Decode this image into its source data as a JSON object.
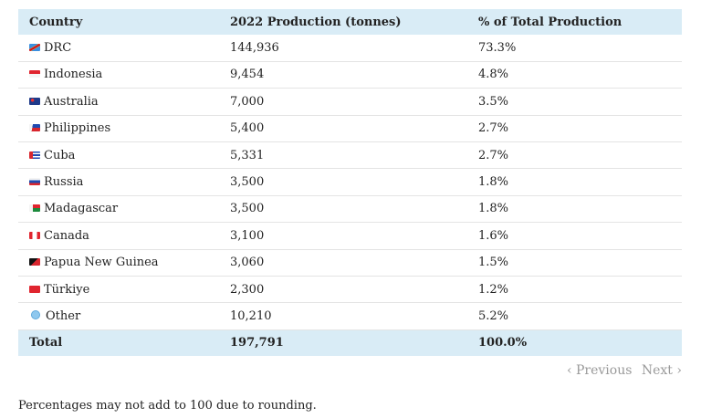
{
  "table": {
    "header": [
      "Country",
      "2022 Production (tonnes)",
      "% of Total Production"
    ],
    "rows": [
      [
        "DRC",
        "144,936",
        "73.3%"
      ],
      [
        "Indonesia",
        "9,454",
        "4.8%"
      ],
      [
        "Australia",
        "7,000",
        "3.5%"
      ],
      [
        "Philippines",
        "5,400",
        "2.7%"
      ],
      [
        "Cuba",
        "5,331",
        "2.7%"
      ],
      [
        "Russia",
        "3,500",
        "1.8%"
      ],
      [
        "Madagascar",
        "3,500",
        "1.8%"
      ],
      [
        "Canada",
        "3,100",
        "1.6%"
      ],
      [
        "Papua New Guinea",
        "3,060",
        "1.5%"
      ],
      [
        "Türkiye",
        "2,300",
        "1.2%"
      ],
      [
        "Other",
        "10,210",
        "5.2%"
      ]
    ],
    "total": [
      "Total",
      "197,791",
      "100.0%"
    ]
  },
  "pagination": {
    "previous": "Previous",
    "next": "Next"
  },
  "footnote": "Percentages may not add to 100 due to rounding."
}
